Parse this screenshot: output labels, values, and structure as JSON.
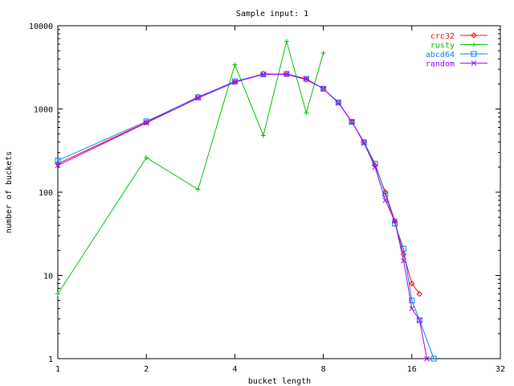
{
  "chart_data": {
    "type": "line",
    "title": "Sample input: 1",
    "xlabel": "bucket length",
    "ylabel": "number of buckets",
    "x_scale": "log2",
    "y_scale": "log10",
    "xlim": [
      1,
      32
    ],
    "ylim": [
      1,
      10000
    ],
    "xticks": [
      1,
      2,
      4,
      8,
      16,
      32
    ],
    "yticks": [
      1,
      10,
      100,
      1000,
      10000
    ],
    "legend_position": "top-right",
    "grid": false,
    "series": [
      {
        "name": "crc32",
        "color": "#ff0000",
        "marker": "diamond",
        "x": [
          1,
          2,
          3,
          4,
          5,
          6,
          7,
          8,
          9,
          10,
          11,
          12,
          13,
          14,
          15,
          16,
          17
        ],
        "y": [
          220,
          690,
          1400,
          2100,
          2650,
          2600,
          2250,
          1750,
          1200,
          700,
          400,
          210,
          100,
          45,
          18,
          8,
          6
        ]
      },
      {
        "name": "rusty",
        "color": "#00c000",
        "marker": "plus",
        "x": [
          1,
          2,
          3,
          4,
          5,
          6,
          7,
          8
        ],
        "y": [
          6,
          260,
          108,
          3400,
          480,
          6500,
          900,
          4700
        ]
      },
      {
        "name": "abcd64",
        "color": "#0080ff",
        "marker": "square",
        "x": [
          1,
          2,
          3,
          4,
          5,
          6,
          7,
          8,
          9,
          10,
          11,
          12,
          13,
          14,
          15,
          16,
          17,
          19
        ],
        "y": [
          240,
          710,
          1380,
          2150,
          2600,
          2650,
          2300,
          1750,
          1200,
          700,
          400,
          220,
          95,
          42,
          21,
          5,
          2.9,
          1
        ]
      },
      {
        "name": "random",
        "color": "#a000ff",
        "marker": "cross",
        "x": [
          1,
          2,
          3,
          4,
          5,
          6,
          7,
          8,
          9,
          10,
          11,
          12,
          13,
          14,
          15,
          16,
          17,
          18
        ],
        "y": [
          210,
          680,
          1350,
          2100,
          2600,
          2600,
          2300,
          1750,
          1180,
          700,
          390,
          200,
          80,
          45,
          15,
          4,
          2.9,
          1
        ]
      }
    ]
  }
}
